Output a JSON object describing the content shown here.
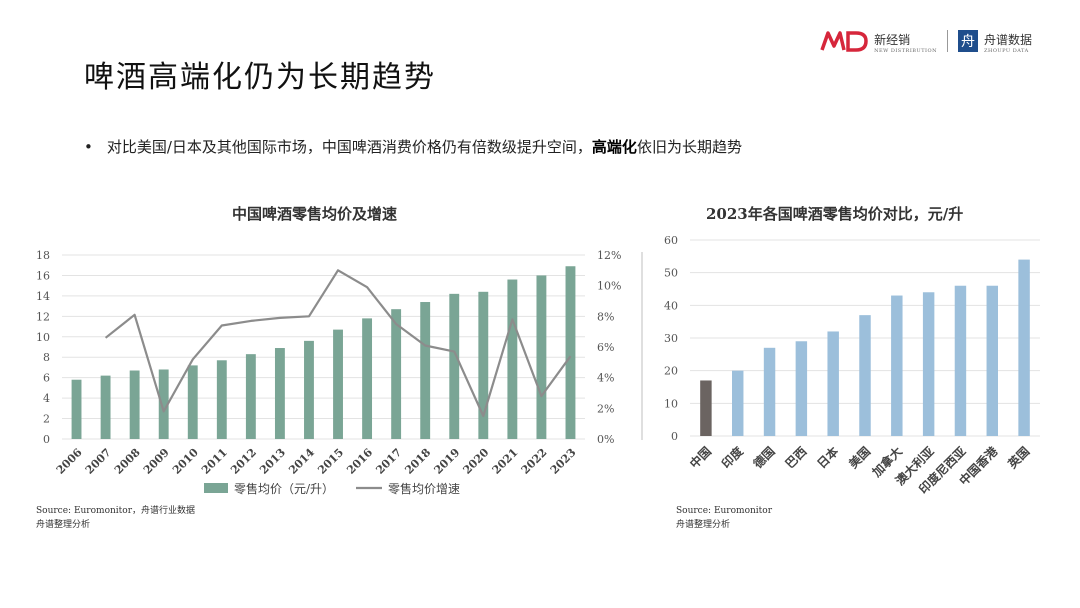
{
  "page": {
    "title": "啤酒高端化仍为长期趋势",
    "bullet_prefix": "•",
    "bullet_text": "对比美国/日本及其他国际市场，中国啤酒消费价格仍有倍数级提升空间，",
    "bullet_bold": "高端化",
    "bullet_suffix": "依旧为长期趋势"
  },
  "logo": {
    "brand1": "新经销",
    "brand1_sub": "NEW DISTRIBUTION",
    "brand2": "舟谱数据",
    "brand2_sub": "ZHOUPU DATA",
    "brand2_icon": "舟"
  },
  "source_left": {
    "line1": "Source: Euromonitor，舟谱行业数据",
    "line2": "舟谱整理分析"
  },
  "source_right": {
    "line1": "Source: Euromonitor",
    "line2": "舟谱整理分析"
  },
  "chart_data": [
    {
      "type": "bar",
      "title": "中国啤酒零售均价及增速",
      "categories": [
        "2006",
        "2007",
        "2008",
        "2009",
        "2010",
        "2011",
        "2012",
        "2013",
        "2014",
        "2015",
        "2016",
        "2017",
        "2018",
        "2019",
        "2020",
        "2021",
        "2022",
        "2023"
      ],
      "series": [
        {
          "name": "零售均价（元/升）",
          "type": "bar",
          "axis": "left",
          "color": "#7aa595",
          "values": [
            5.8,
            6.2,
            6.7,
            6.8,
            7.2,
            7.7,
            8.3,
            8.9,
            9.6,
            10.7,
            11.8,
            12.7,
            13.4,
            14.2,
            14.4,
            15.6,
            16.0,
            16.9
          ]
        },
        {
          "name": "零售均价增速",
          "type": "line",
          "axis": "right",
          "color": "#8c8c8c",
          "values": [
            null,
            6.6,
            8.1,
            1.8,
            5.2,
            7.4,
            7.7,
            7.9,
            8.0,
            11.0,
            9.9,
            7.5,
            6.1,
            5.7,
            1.5,
            7.8,
            2.8,
            5.4
          ]
        }
      ],
      "ylim": [
        0,
        18
      ],
      "yticks": [
        0,
        2,
        4,
        6,
        8,
        10,
        12,
        14,
        16,
        18
      ],
      "y2lim": [
        0,
        12
      ],
      "y2ticks": [
        "0%",
        "2%",
        "4%",
        "6%",
        "8%",
        "10%",
        "12%"
      ],
      "legend": "bottom",
      "grid": true
    },
    {
      "type": "bar",
      "title": "2023年各国啤酒零售均价对比，元/升",
      "categories": [
        "中国",
        "印度",
        "德国",
        "巴西",
        "日本",
        "美国",
        "加拿大",
        "澳大利亚",
        "印度尼西亚",
        "中国香港",
        "英国"
      ],
      "values": [
        17,
        20,
        27,
        29,
        32,
        37,
        43,
        44,
        46,
        46,
        54
      ],
      "colors": {
        "highlight": "#6b6461",
        "default": "#9cbfdb"
      },
      "ylim": [
        0,
        60
      ],
      "yticks": [
        0,
        10,
        20,
        30,
        40,
        50,
        60
      ],
      "grid": true
    }
  ]
}
